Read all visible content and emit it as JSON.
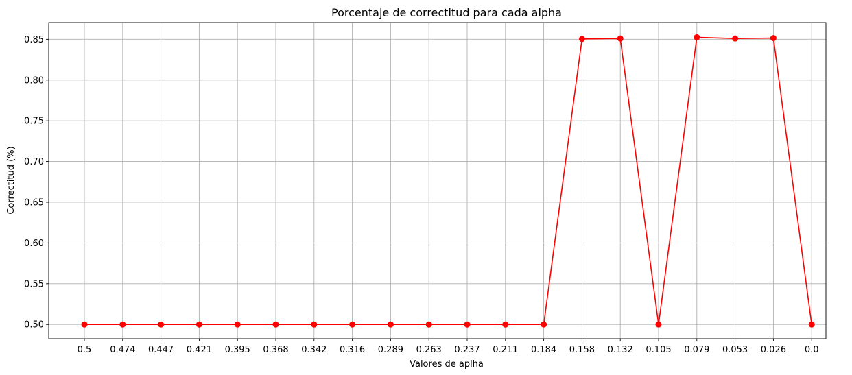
{
  "chart_data": {
    "type": "line",
    "title": "Porcentaje de correctitud para cada alpha",
    "xlabel": "Valores de aplha",
    "ylabel": "Correctitud (%)",
    "categories": [
      "0.5",
      "0.474",
      "0.447",
      "0.421",
      "0.395",
      "0.368",
      "0.342",
      "0.316",
      "0.289",
      "0.263",
      "0.237",
      "0.211",
      "0.184",
      "0.158",
      "0.132",
      "0.105",
      "0.079",
      "0.053",
      "0.026",
      "0.0"
    ],
    "series": [
      {
        "values": [
          0.5,
          0.5,
          0.5,
          0.5,
          0.5,
          0.5,
          0.5,
          0.5,
          0.5,
          0.5,
          0.5,
          0.5,
          0.5,
          0.8505,
          0.851,
          0.5,
          0.8525,
          0.851,
          0.8515,
          0.5
        ],
        "color": "#ff0000",
        "marker": "circle"
      }
    ],
    "yticks": [
      "0.50",
      "0.55",
      "0.60",
      "0.65",
      "0.70",
      "0.75",
      "0.80",
      "0.85"
    ],
    "ylim": [
      0.4825,
      0.8705
    ],
    "grid": true
  }
}
